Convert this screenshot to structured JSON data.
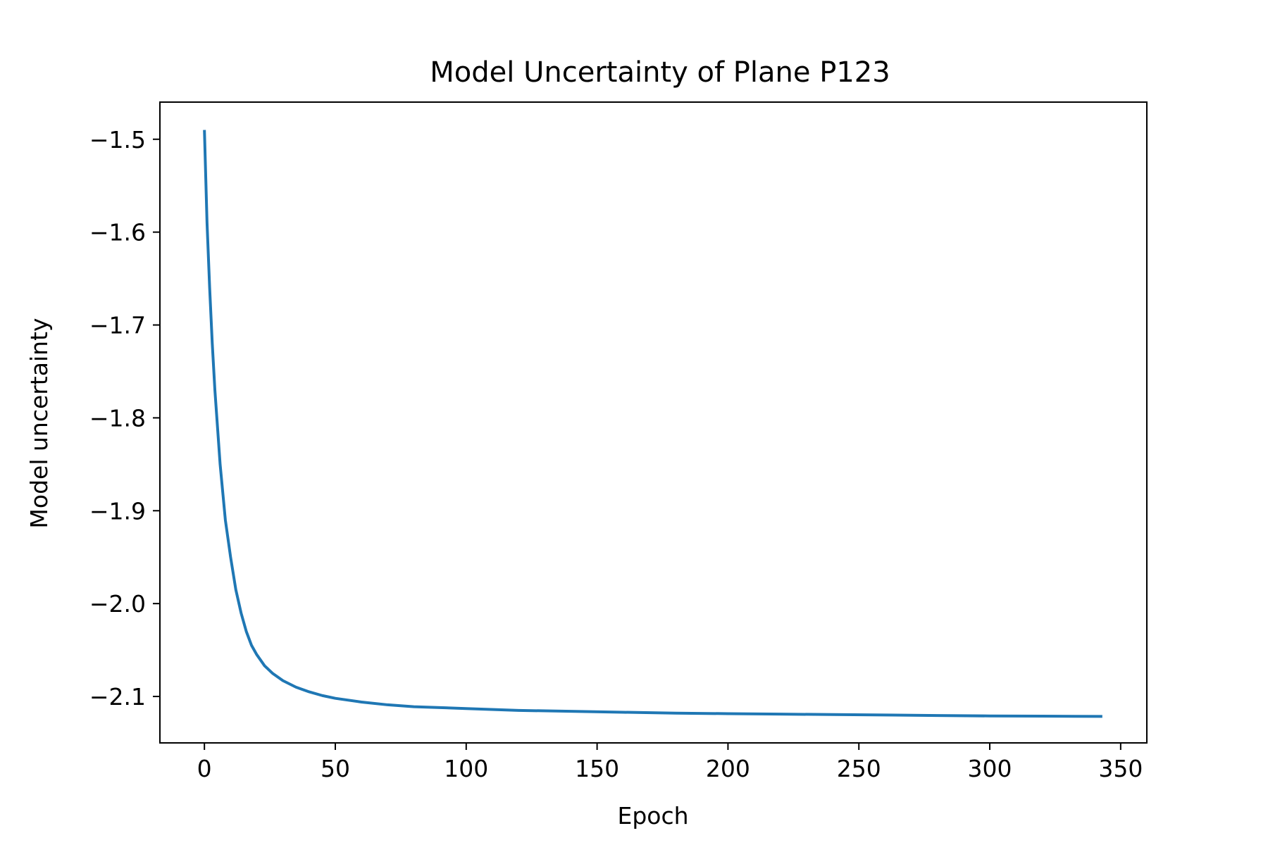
{
  "chart_data": {
    "type": "line",
    "title": "Model Uncertainty of Plane P123",
    "xlabel": "Epoch",
    "ylabel": "Model uncertainty",
    "xlim": [
      -17,
      360
    ],
    "ylim": [
      -2.15,
      -1.46
    ],
    "xticks": [
      {
        "value": 0,
        "label": "0"
      },
      {
        "value": 50,
        "label": "50"
      },
      {
        "value": 100,
        "label": "100"
      },
      {
        "value": 150,
        "label": "150"
      },
      {
        "value": 200,
        "label": "200"
      },
      {
        "value": 250,
        "label": "250"
      },
      {
        "value": 300,
        "label": "300"
      },
      {
        "value": 350,
        "label": "350"
      }
    ],
    "yticks": [
      {
        "value": -1.5,
        "label": "−1.5"
      },
      {
        "value": -1.6,
        "label": "−1.6"
      },
      {
        "value": -1.7,
        "label": "−1.7"
      },
      {
        "value": -1.8,
        "label": "−1.8"
      },
      {
        "value": -1.9,
        "label": "−1.9"
      },
      {
        "value": -2.0,
        "label": "−2.0"
      },
      {
        "value": -2.1,
        "label": "−2.1"
      }
    ],
    "grid": false,
    "series": [
      {
        "color": "#1f77b4",
        "x": [
          0,
          1,
          2,
          3,
          4,
          5,
          6,
          8,
          10,
          12,
          14,
          16,
          18,
          20,
          23,
          26,
          30,
          35,
          40,
          45,
          50,
          60,
          70,
          80,
          90,
          100,
          120,
          140,
          160,
          180,
          200,
          220,
          240,
          260,
          280,
          300,
          320,
          343
        ],
        "y": [
          -1.49,
          -1.59,
          -1.66,
          -1.72,
          -1.77,
          -1.81,
          -1.85,
          -1.91,
          -1.95,
          -1.985,
          -2.01,
          -2.03,
          -2.045,
          -2.055,
          -2.067,
          -2.075,
          -2.083,
          -2.09,
          -2.095,
          -2.099,
          -2.102,
          -2.106,
          -2.109,
          -2.111,
          -2.112,
          -2.113,
          -2.115,
          -2.116,
          -2.117,
          -2.118,
          -2.1185,
          -2.119,
          -2.1195,
          -2.12,
          -2.1205,
          -2.121,
          -2.1212,
          -2.1215
        ]
      }
    ]
  }
}
